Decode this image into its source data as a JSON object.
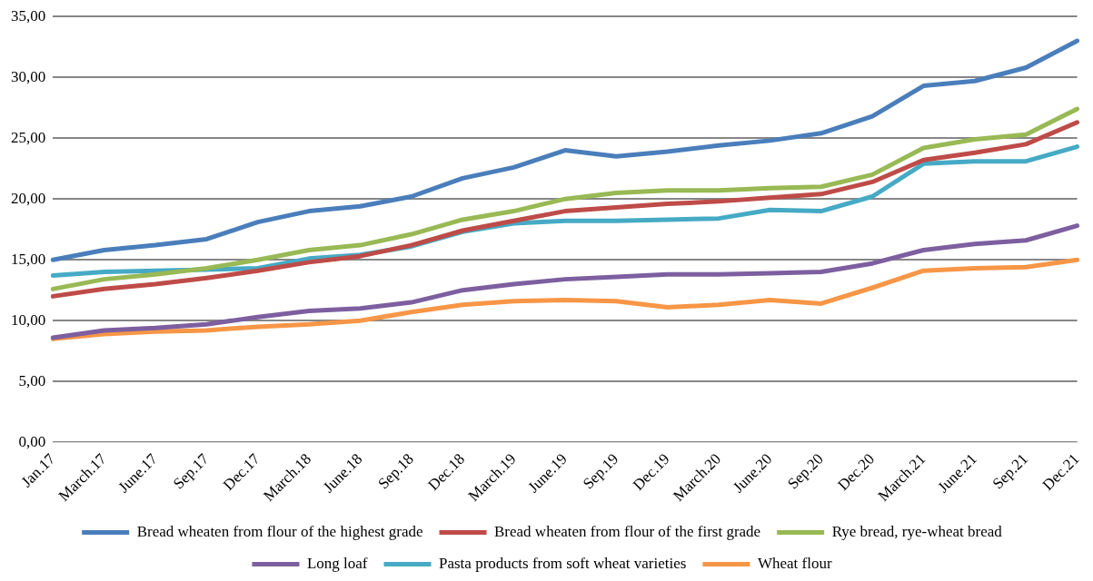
{
  "chart_data": {
    "type": "line",
    "categories": [
      "Jan.17",
      "March.17",
      "June.17",
      "Sep.17",
      "Dec.17",
      "March.18",
      "June.18",
      "Sep.18",
      "Dec.18",
      "March.19",
      "June.19",
      "Sep.19",
      "Dec.19",
      "March.20",
      "June.20",
      "Sep.20",
      "Dec.20",
      "March.21",
      "June.21",
      "Sep.21",
      "Dec.21"
    ],
    "series": [
      {
        "name": "Bread wheaten from flour of the highest grade",
        "color": "#4a7ebb",
        "values": [
          15.0,
          15.8,
          16.2,
          16.7,
          18.1,
          19.0,
          19.4,
          20.2,
          21.7,
          22.6,
          24.0,
          23.5,
          23.9,
          24.4,
          24.8,
          25.4,
          26.8,
          29.3,
          29.7,
          30.8,
          33.0
        ]
      },
      {
        "name": "Bread wheaten from flour of the first grade",
        "color": "#be4b48",
        "values": [
          12.0,
          12.6,
          13.0,
          13.5,
          14.1,
          14.8,
          15.3,
          16.2,
          17.4,
          18.2,
          19.0,
          19.3,
          19.6,
          19.8,
          20.1,
          20.4,
          21.4,
          23.2,
          23.8,
          24.5,
          26.3
        ]
      },
      {
        "name": "Rye bread, rye-wheat bread",
        "color": "#98b954",
        "values": [
          12.6,
          13.4,
          13.8,
          14.3,
          15.0,
          15.8,
          16.2,
          17.1,
          18.3,
          19.0,
          20.0,
          20.5,
          20.7,
          20.7,
          20.9,
          21.0,
          22.0,
          24.2,
          24.9,
          25.3,
          27.4
        ]
      },
      {
        "name": "Long loaf",
        "color": "#7d5fa0",
        "values": [
          8.6,
          9.2,
          9.4,
          9.7,
          10.3,
          10.8,
          11.0,
          11.5,
          12.5,
          13.0,
          13.4,
          13.6,
          13.8,
          13.8,
          13.9,
          14.0,
          14.7,
          15.8,
          16.3,
          16.6,
          17.8
        ]
      },
      {
        "name": "Pasta products from soft wheat varieties",
        "color": "#46aac5",
        "values": [
          13.7,
          14.0,
          14.1,
          14.2,
          14.3,
          15.1,
          15.4,
          16.1,
          17.3,
          18.0,
          18.2,
          18.2,
          18.3,
          18.4,
          19.1,
          19.0,
          20.2,
          22.9,
          23.1,
          23.1,
          24.3
        ]
      },
      {
        "name": "Wheat flour",
        "color": "#f79646",
        "values": [
          8.5,
          8.9,
          9.1,
          9.2,
          9.5,
          9.7,
          10.0,
          10.7,
          11.3,
          11.6,
          11.7,
          11.6,
          11.1,
          11.3,
          11.7,
          11.4,
          12.7,
          14.1,
          14.3,
          14.4,
          15.0
        ]
      }
    ],
    "ylim": [
      0,
      35
    ],
    "yticks": [
      {
        "value": 0,
        "label": "0,00"
      },
      {
        "value": 5,
        "label": "5,00"
      },
      {
        "value": 10,
        "label": "10,00"
      },
      {
        "value": 15,
        "label": "15,00"
      },
      {
        "value": 20,
        "label": "20,00"
      },
      {
        "value": 25,
        "label": "25,00"
      },
      {
        "value": 30,
        "label": "30,00"
      },
      {
        "value": 35,
        "label": "35,00"
      }
    ],
    "grid": "y",
    "legend": "bottom",
    "marker": "none",
    "line_style": "solid"
  }
}
